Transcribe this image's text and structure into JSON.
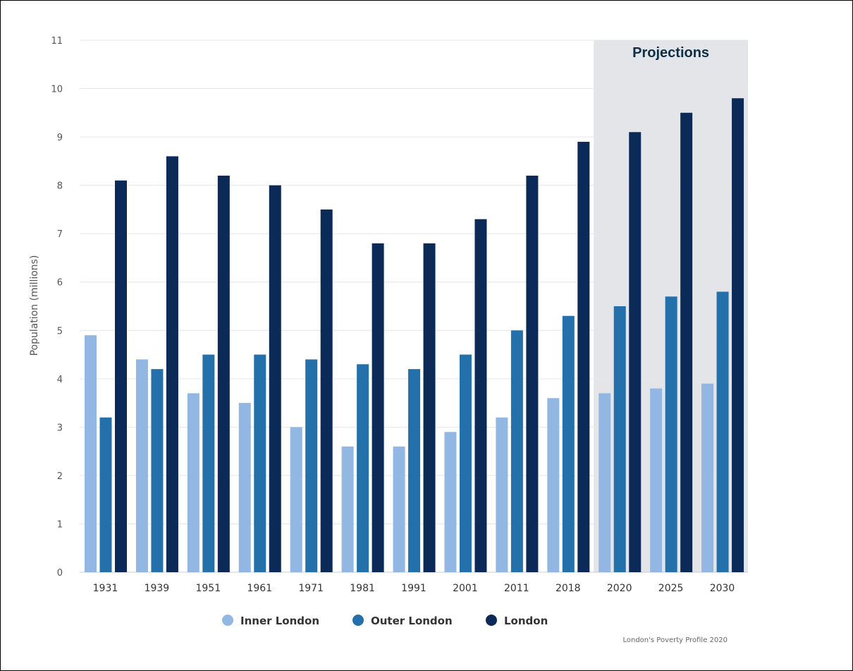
{
  "chart_data": {
    "type": "bar",
    "categories": [
      "1931",
      "1939",
      "1951",
      "1961",
      "1971",
      "1981",
      "1991",
      "2001",
      "2011",
      "2018",
      "2020",
      "2025",
      "2030"
    ],
    "series": [
      {
        "name": "Inner London",
        "color": "#93b7e3",
        "values": [
          4.9,
          4.4,
          3.7,
          3.5,
          3.0,
          2.6,
          2.6,
          2.9,
          3.2,
          3.6,
          3.7,
          3.8,
          3.9
        ]
      },
      {
        "name": "Outer London",
        "color": "#2470ab",
        "values": [
          3.2,
          4.2,
          4.5,
          4.5,
          4.4,
          4.3,
          4.2,
          4.5,
          5.0,
          5.3,
          5.5,
          5.7,
          5.8
        ]
      },
      {
        "name": "London",
        "color": "#0c2a57",
        "values": [
          8.1,
          8.6,
          8.2,
          8.0,
          7.5,
          6.8,
          6.8,
          7.3,
          8.2,
          8.9,
          9.1,
          9.5,
          9.8
        ]
      }
    ],
    "ylabel": "Population (millions)",
    "xlabel": "",
    "ylim": [
      0,
      11
    ],
    "yticks": [
      0,
      1,
      2,
      3,
      4,
      5,
      6,
      7,
      8,
      9,
      10,
      11
    ],
    "grid": true,
    "legend_position": "bottom-center",
    "projection_band": {
      "label": "Projections",
      "categories": [
        "2020",
        "2025",
        "2030"
      ],
      "color": "#e3e5e9"
    }
  },
  "source_credit": "London's Poverty Profile 2020"
}
